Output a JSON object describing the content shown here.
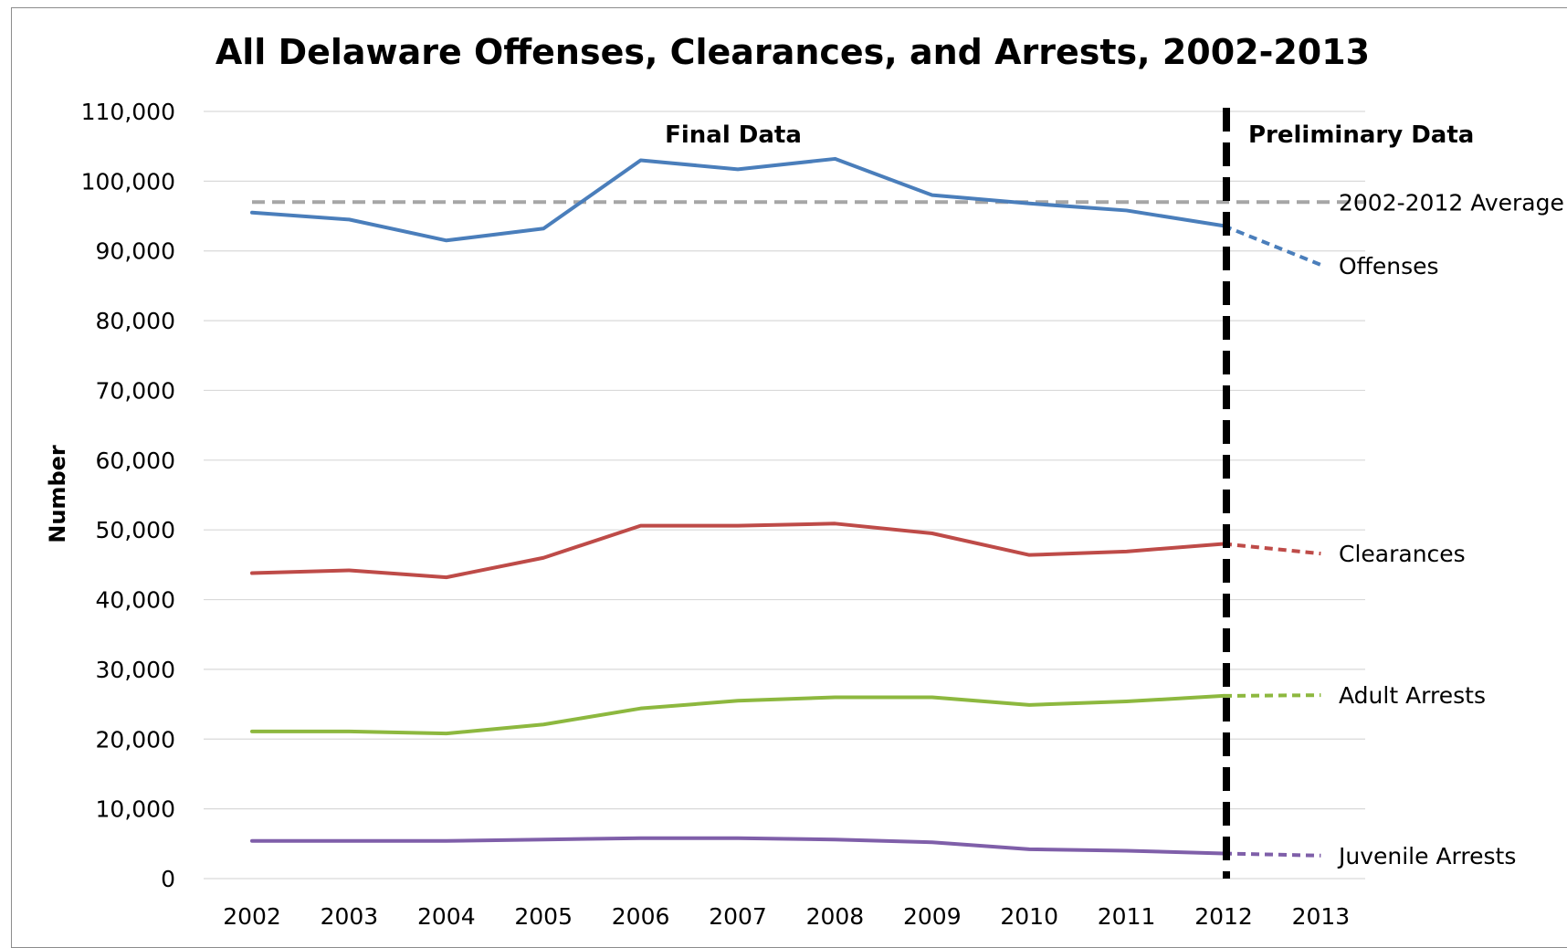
{
  "chart_data": {
    "type": "line",
    "title": "All Delaware Offenses, Clearances, and Arrests, 2002-2013",
    "xlabel": "",
    "ylabel": "Number",
    "ylim": [
      0,
      110000
    ],
    "yticks": [
      0,
      10000,
      20000,
      30000,
      40000,
      50000,
      60000,
      70000,
      80000,
      90000,
      100000,
      110000
    ],
    "ytick_labels": [
      "0",
      "10,000",
      "20,000",
      "30,000",
      "40,000",
      "50,000",
      "60,000",
      "70,000",
      "80,000",
      "90,000",
      "100,000",
      "110,000"
    ],
    "categories": [
      "2002",
      "2003",
      "2004",
      "2005",
      "2006",
      "2007",
      "2008",
      "2009",
      "2010",
      "2011",
      "2012",
      "2013"
    ],
    "grid": true,
    "section_labels": {
      "final": "Final Data",
      "preliminary": "Preliminary Data"
    },
    "divider_after_category": "2012",
    "series": [
      {
        "name": "Offenses",
        "color": "#4a7ebb",
        "values": [
          95500,
          94500,
          91500,
          93200,
          103000,
          101700,
          103200,
          98000,
          96800,
          95800,
          93600,
          88000
        ],
        "preliminary_from": "2012"
      },
      {
        "name": "Clearances",
        "color": "#be4b48",
        "values": [
          43800,
          44200,
          43200,
          46000,
          50600,
          50600,
          50900,
          49500,
          46400,
          46900,
          48000,
          46600
        ],
        "preliminary_from": "2012"
      },
      {
        "name": "Adult Arrests",
        "color": "#8db83f",
        "values": [
          21100,
          21100,
          20800,
          22100,
          24400,
          25500,
          26000,
          26000,
          24900,
          25400,
          26200,
          26300
        ],
        "preliminary_from": "2012"
      },
      {
        "name": "Juvenile Arrests",
        "color": "#7f5fa9",
        "values": [
          5400,
          5400,
          5400,
          5600,
          5800,
          5800,
          5600,
          5200,
          4200,
          4000,
          3600,
          3300
        ],
        "preliminary_from": "2012"
      }
    ],
    "reference_line": {
      "name": "2002-2012 Average",
      "value": 97000,
      "color": "#a6a6a6"
    }
  }
}
